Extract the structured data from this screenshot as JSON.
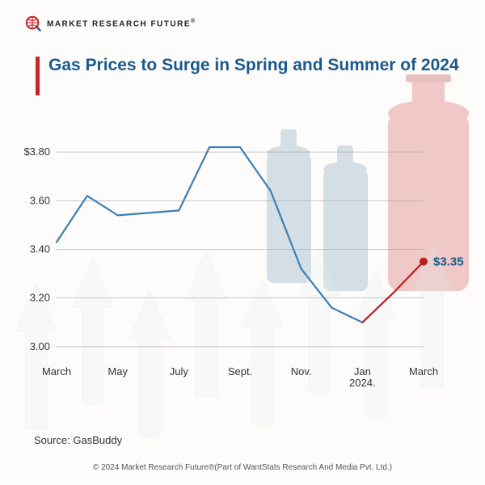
{
  "logo": {
    "text": "MARKET  RESEARCH  FUTURE",
    "registered": "®"
  },
  "title": "Gas Prices to Surge in Spring and Summer of 2024",
  "chart": {
    "type": "line",
    "x_labels": [
      "March",
      "",
      "May",
      "",
      "July",
      "",
      "Sept.",
      "",
      "Nov.",
      "",
      "Jan\n2024.",
      "",
      "March"
    ],
    "y_ticks": [
      3.0,
      3.2,
      3.4,
      3.6,
      3.8
    ],
    "y_tick_labels": [
      "3.00",
      "3.20",
      "3.40",
      "3.60",
      "$3.80"
    ],
    "ylim": [
      2.95,
      3.9
    ],
    "series": [
      {
        "name": "historical",
        "color": "#3a7fb5",
        "stroke_width": 2.2,
        "values": [
          3.43,
          3.62,
          3.54,
          3.55,
          3.56,
          3.82,
          3.82,
          3.64,
          3.32,
          3.16,
          3.1,
          null,
          null
        ]
      },
      {
        "name": "forecast",
        "color": "#b82020",
        "stroke_width": 2.2,
        "values": [
          null,
          null,
          null,
          null,
          null,
          null,
          null,
          null,
          null,
          null,
          3.1,
          3.22,
          3.35
        ]
      }
    ],
    "end_point": {
      "index": 12,
      "value": 3.35,
      "label": "$3.35",
      "marker_color": "#b82020",
      "marker_radius": 5
    },
    "grid_color": "#aaaaaa",
    "axis_font_size": 13,
    "background": "transparent"
  },
  "source": "Source: GasBuddy",
  "copyright": "© 2024 Market Research Future®(Part of WantStats Research And Media Pvt. Ltd.)",
  "bg": {
    "arrow_fill": "#e8eef3",
    "arrow_stroke": "#cdd9e3",
    "cylinder_red": "#d86a6a",
    "cylinder_blue": "#8aa8c0"
  }
}
